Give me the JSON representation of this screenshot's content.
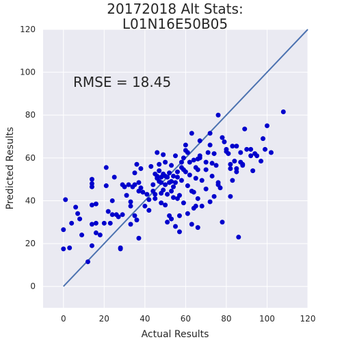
{
  "chart_data": {
    "type": "scatter",
    "title_lines": [
      "20172018 Alt Stats:",
      "L01N16E50B05"
    ],
    "xlabel": "Actual Results",
    "ylabel": "Predicted Results",
    "xlim": [
      -10,
      120
    ],
    "ylim": [
      -10,
      120
    ],
    "xticks": [
      0,
      20,
      40,
      60,
      80,
      100,
      120
    ],
    "yticks": [
      0,
      20,
      40,
      60,
      80,
      100,
      120
    ],
    "annotation": "RMSE = 18.45",
    "grid": true,
    "colors": {
      "background": "#eaeaf2",
      "grid": "#ffffff",
      "points": "#0000cc",
      "fit_line": "#4c72b0"
    },
    "reference_line": {
      "x": [
        0,
        120
      ],
      "y": [
        0,
        120
      ]
    },
    "points": [
      [
        0,
        26.5
      ],
      [
        0,
        17.5
      ],
      [
        1,
        40.5
      ],
      [
        3,
        18
      ],
      [
        4,
        29.5
      ],
      [
        6,
        37
      ],
      [
        7,
        34
      ],
      [
        8,
        31.5
      ],
      [
        9,
        24
      ],
      [
        12,
        11.5
      ],
      [
        14,
        46.5
      ],
      [
        14,
        48
      ],
      [
        14,
        50
      ],
      [
        14,
        38
      ],
      [
        14,
        29
      ],
      [
        14,
        19
      ],
      [
        16,
        25
      ],
      [
        16,
        29.5
      ],
      [
        16,
        38.5
      ],
      [
        18,
        24
      ],
      [
        20,
        29.5
      ],
      [
        21,
        55.5
      ],
      [
        21,
        47
      ],
      [
        22,
        35
      ],
      [
        23,
        29.5
      ],
      [
        24,
        40
      ],
      [
        24,
        33.5
      ],
      [
        25,
        51
      ],
      [
        26,
        33.5
      ],
      [
        27,
        32.5
      ],
      [
        28,
        17.5
      ],
      [
        28,
        18
      ],
      [
        29,
        33.5
      ],
      [
        29,
        47.5
      ],
      [
        30,
        46.5
      ],
      [
        31,
        42.5
      ],
      [
        32,
        47.5
      ],
      [
        33,
        39.5
      ],
      [
        33,
        37.5
      ],
      [
        33,
        29
      ],
      [
        34,
        46.5
      ],
      [
        35,
        53
      ],
      [
        35,
        47.5
      ],
      [
        35,
        33
      ],
      [
        36,
        57
      ],
      [
        36,
        31
      ],
      [
        37,
        48.5
      ],
      [
        37,
        22.5
      ],
      [
        37,
        44.5
      ],
      [
        38,
        46
      ],
      [
        38,
        55
      ],
      [
        39,
        44
      ],
      [
        40,
        37.5
      ],
      [
        41,
        43
      ],
      [
        42,
        40.5
      ],
      [
        42,
        35.5
      ],
      [
        43,
        56
      ],
      [
        44,
        47.5
      ],
      [
        44,
        44.5
      ],
      [
        45,
        52.5
      ],
      [
        45,
        43
      ],
      [
        45,
        41
      ],
      [
        46,
        50.5
      ],
      [
        46,
        62.5
      ],
      [
        46,
        51.5
      ],
      [
        47,
        49
      ],
      [
        47,
        57
      ],
      [
        47,
        54
      ],
      [
        48,
        51
      ],
      [
        48,
        48.5
      ],
      [
        48,
        43.5
      ],
      [
        48,
        39
      ],
      [
        49,
        61.5
      ],
      [
        49,
        52.5
      ],
      [
        49,
        45
      ],
      [
        50,
        51.5
      ],
      [
        50,
        58
      ],
      [
        50,
        47.5
      ],
      [
        50,
        38
      ],
      [
        51,
        51
      ],
      [
        51,
        43
      ],
      [
        51,
        30
      ],
      [
        52,
        53
      ],
      [
        52,
        48.5
      ],
      [
        52,
        33
      ],
      [
        53,
        56.5
      ],
      [
        53,
        44.5
      ],
      [
        53,
        49
      ],
      [
        53,
        31.5
      ],
      [
        54,
        51.5
      ],
      [
        54,
        46.5
      ],
      [
        54,
        41.5
      ],
      [
        55,
        61
      ],
      [
        55,
        48.5
      ],
      [
        55,
        28
      ],
      [
        56,
        53.5
      ],
      [
        56,
        51
      ],
      [
        56,
        41
      ],
      [
        57,
        42.5
      ],
      [
        57,
        33
      ],
      [
        57,
        25.5
      ],
      [
        58,
        55.5
      ],
      [
        58,
        58
      ],
      [
        58,
        49.5
      ],
      [
        59,
        60
      ],
      [
        59,
        54.5
      ],
      [
        59,
        39
      ],
      [
        60,
        66
      ],
      [
        60,
        63.5
      ],
      [
        60,
        53.5
      ],
      [
        61,
        62.5
      ],
      [
        61,
        47
      ],
      [
        61,
        34
      ],
      [
        62,
        58
      ],
      [
        62,
        52
      ],
      [
        63,
        71.5
      ],
      [
        63,
        44.5
      ],
      [
        63,
        29
      ],
      [
        64,
        59
      ],
      [
        64,
        44
      ],
      [
        64,
        36.5
      ],
      [
        65,
        55.5
      ],
      [
        65,
        50.5
      ],
      [
        65,
        37.5
      ],
      [
        66,
        59.5
      ],
      [
        66,
        54.5
      ],
      [
        66,
        41
      ],
      [
        66,
        27.5
      ],
      [
        67,
        61
      ],
      [
        67,
        60
      ],
      [
        67,
        68
      ],
      [
        68,
        49.5
      ],
      [
        68,
        37.5
      ],
      [
        70,
        58
      ],
      [
        70,
        54.5
      ],
      [
        70,
        45.5
      ],
      [
        71,
        62.5
      ],
      [
        72,
        71.5
      ],
      [
        72,
        66
      ],
      [
        72,
        39.5
      ],
      [
        73,
        57.5
      ],
      [
        73,
        51.5
      ],
      [
        74,
        62
      ],
      [
        74,
        42
      ],
      [
        75,
        56.5
      ],
      [
        76,
        48.5
      ],
      [
        76,
        47.5
      ],
      [
        76,
        80
      ],
      [
        77,
        46
      ],
      [
        78,
        30
      ],
      [
        78,
        69.5
      ],
      [
        79,
        67.5
      ],
      [
        80,
        64
      ],
      [
        80,
        63
      ],
      [
        81,
        62
      ],
      [
        82,
        57
      ],
      [
        82,
        42
      ],
      [
        82,
        55
      ],
      [
        83,
        65.5
      ],
      [
        83,
        49.5
      ],
      [
        84,
        58.5
      ],
      [
        85,
        65.5
      ],
      [
        85,
        55
      ],
      [
        85,
        53.5
      ],
      [
        86,
        23
      ],
      [
        87,
        58
      ],
      [
        87,
        62.5
      ],
      [
        88,
        57
      ],
      [
        88,
        56.5
      ],
      [
        89,
        73.5
      ],
      [
        90,
        64
      ],
      [
        92,
        61
      ],
      [
        92,
        64
      ],
      [
        93,
        54
      ],
      [
        94,
        62
      ],
      [
        95,
        61
      ],
      [
        97,
        58.5
      ],
      [
        98,
        69
      ],
      [
        99,
        64
      ],
      [
        100,
        75
      ],
      [
        102,
        62.5
      ],
      [
        108,
        81.5
      ]
    ]
  }
}
